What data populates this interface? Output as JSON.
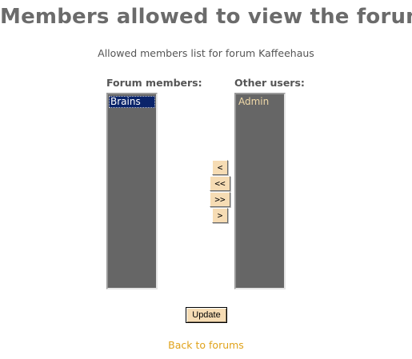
{
  "page": {
    "title": "Members allowed to view the forum",
    "subtitle": "Allowed members list for forum Kaffeehaus"
  },
  "forum_members": {
    "label": "Forum members:",
    "options": [
      {
        "text": "Brains",
        "selected": true
      }
    ]
  },
  "other_users": {
    "label": "Other users:",
    "options": [
      {
        "text": "Admin",
        "selected": false
      }
    ]
  },
  "move_buttons": {
    "move_one_left": "<",
    "move_all_left": "<<",
    "move_all_right": ">>",
    "move_one_right": ">"
  },
  "update_label": "Update",
  "back_link": "Back to forums",
  "colors": {
    "title": "#6b6b6b",
    "listbox_bg": "#666666",
    "option_text": "#f0d9a8",
    "selected_bg": "#0a246a",
    "button_bg": "#f6dcb4",
    "link": "#e0a21a"
  }
}
